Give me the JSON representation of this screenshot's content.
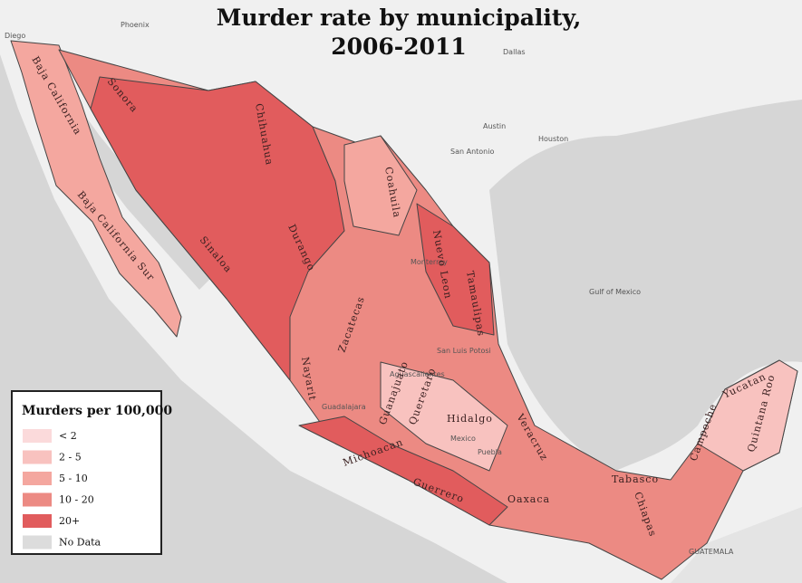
{
  "title": [
    "Murder rate by municipality,",
    "2006-2011"
  ],
  "legend": {
    "title": "Murders per 100,000",
    "items": [
      {
        "label": "< 2",
        "color": "#fbdadb"
      },
      {
        "label": "2 - 5",
        "color": "#f8c2bf"
      },
      {
        "label": "5 - 10",
        "color": "#f4a79f"
      },
      {
        "label": "10 - 20",
        "color": "#ec8a83"
      },
      {
        "label": "20+",
        "color": "#e15c5d"
      },
      {
        "label": "No Data",
        "color": "#dcdcdc"
      }
    ]
  },
  "places": [
    "Diego",
    "Phoenix",
    "Dallas",
    "Austin",
    "San Antonio",
    "Houston",
    "Gulf of Mexico",
    "GUATEMALA",
    "Monterrey",
    "San Luis Potosi",
    "Aguascalientes",
    "Guadalajara",
    "Mexico",
    "Puebla"
  ],
  "states": [
    "Baja California",
    "Baja California Sur",
    "Sonora",
    "Chihuahua",
    "Coahuila",
    "Nuevo Leon",
    "Tamaulipas",
    "Sinaloa",
    "Durango",
    "Zacatecas",
    "Nayarit",
    "Michoacan",
    "Guerrero",
    "Oaxaca",
    "Chiapas",
    "Tabasco",
    "Campeche",
    "Yucatan",
    "Quintana Roo",
    "Veracruz",
    "Hidalgo",
    "Queretaro",
    "Guanajuato"
  ]
}
